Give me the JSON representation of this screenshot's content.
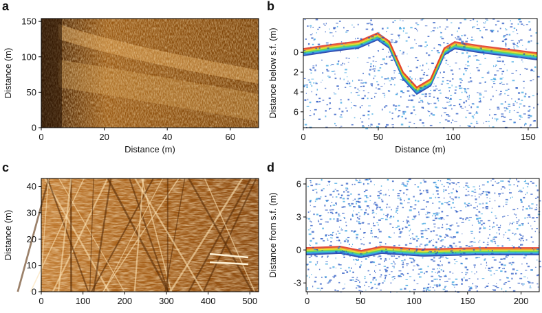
{
  "panels": [
    {
      "label": "a",
      "xlabel": "Distance (m)",
      "ylabel": "Distance (m)",
      "xlim": [
        0,
        69
      ],
      "ylim": [
        0,
        154
      ],
      "xticks": [
        0,
        20,
        40,
        60
      ],
      "yticks": [
        0,
        50,
        100,
        150
      ]
    },
    {
      "label": "b",
      "xlabel": "Distance (m)",
      "ylabel": "Distance below s.f. (m)",
      "xlim": [
        0,
        156
      ],
      "ylim": [
        7.6,
        -3.4
      ],
      "xticks": [
        0,
        50,
        100,
        150
      ],
      "yticks": [
        0,
        2,
        4,
        6
      ]
    },
    {
      "label": "c",
      "ylabel": "Distance (m)",
      "xlim": [
        0,
        521
      ],
      "ylim": [
        0,
        43
      ],
      "xticks": [
        0,
        100,
        200,
        300,
        400,
        500
      ],
      "yticks": [
        0,
        10,
        20,
        30,
        40
      ]
    },
    {
      "label": "d",
      "ylabel": "Distance from s.f. (m)",
      "xlim": [
        -1,
        217
      ],
      "ylim": [
        -3.8,
        6.5
      ],
      "xticks": [
        0,
        50,
        100,
        150,
        200
      ],
      "yticks": [
        -3,
        0,
        3,
        6
      ]
    }
  ]
}
